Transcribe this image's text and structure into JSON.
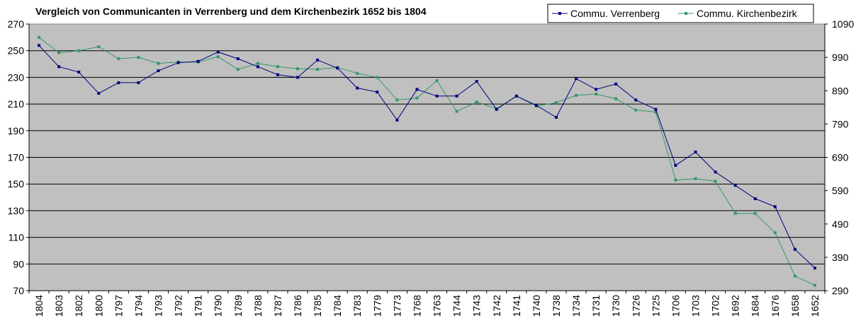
{
  "chart_data": {
    "type": "line",
    "title": "Vergleich von Communicanten in Verrenberg und dem Kirchenbezirk 1652 bis 1804",
    "xlabel": "",
    "ylabel": "",
    "ylabel_right": "",
    "categories": [
      "1804",
      "1803",
      "1802",
      "1800",
      "1797",
      "1794",
      "1793",
      "1792",
      "1791",
      "1790",
      "1789",
      "1788",
      "1787",
      "1786",
      "1785",
      "1784",
      "1783",
      "1779",
      "1773",
      "1768",
      "1763",
      "1744",
      "1743",
      "1742",
      "1741",
      "1740",
      "1738",
      "1734",
      "1731",
      "1730",
      "1726",
      "1725",
      "1706",
      "1703",
      "1702",
      "1692",
      "1684",
      "1676",
      "1658",
      "1652"
    ],
    "ylim": [
      70,
      270
    ],
    "yticks": [
      270,
      250,
      230,
      210,
      190,
      170,
      150,
      130,
      110,
      90,
      70
    ],
    "ylim_right": [
      290,
      1090
    ],
    "yticks_right": [
      1090,
      990,
      890,
      790,
      690,
      590,
      490,
      390,
      290
    ],
    "grid": true,
    "plot_background": "#c0c0c0",
    "legend_position": "top-right",
    "series": [
      {
        "name": "Commu. Verrenberg",
        "axis": "left",
        "color": "#000080",
        "values": [
          254,
          238,
          234,
          218,
          226,
          226,
          235,
          241,
          242,
          249,
          244,
          238,
          232,
          230,
          243,
          237,
          222,
          219,
          198,
          221,
          216,
          216,
          227,
          206,
          216,
          209,
          200,
          229,
          221,
          225,
          213,
          206,
          164,
          174,
          159,
          149,
          139,
          133,
          101,
          87
        ]
      },
      {
        "name": "Commu. Kirchenbezirk",
        "axis": "right",
        "color": "#339966",
        "values": [
          1050,
          1004,
          1010,
          1022,
          986,
          990,
          972,
          976,
          976,
          992,
          954,
          972,
          962,
          956,
          954,
          960,
          942,
          930,
          862,
          868,
          920,
          828,
          856,
          836,
          874,
          844,
          854,
          876,
          880,
          866,
          832,
          826,
          622,
          626,
          618,
          522,
          522,
          464,
          334,
          306
        ]
      }
    ]
  }
}
